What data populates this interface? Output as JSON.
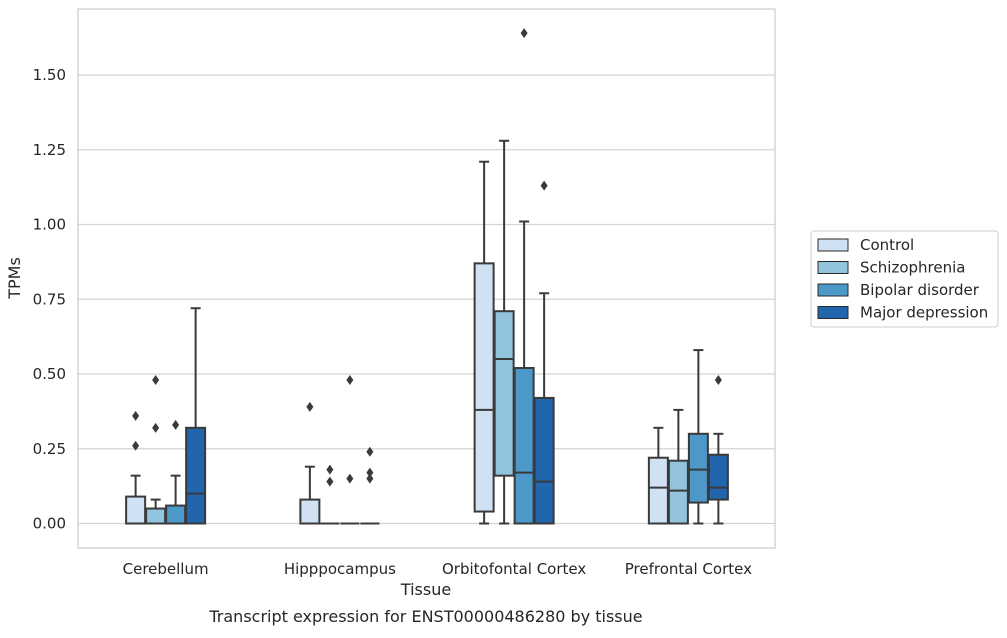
{
  "chart_data": {
    "type": "boxplot",
    "title": "",
    "caption": "Transcript expression for ENST00000486280 by tissue",
    "xlabel": "Tissue",
    "ylabel": "TPMs",
    "ylim": [
      -0.08,
      1.73
    ],
    "yticks": [
      0.0,
      0.25,
      0.5,
      0.75,
      1.0,
      1.25,
      1.5
    ],
    "ytick_labels": [
      "0.00",
      "0.25",
      "0.50",
      "0.75",
      "1.00",
      "1.25",
      "1.50"
    ],
    "grid": "horizontal",
    "legend_position": "right",
    "categories": [
      "Cerebellum",
      "Hipppocampus",
      "Orbitofontal Cortex",
      "Prefrontal Cortex"
    ],
    "series": [
      {
        "name": "Control",
        "color": "#cfe1f2",
        "boxes": [
          {
            "whislo": 0.0,
            "q1": 0.0,
            "med": 0.0,
            "q3": 0.09,
            "whishi": 0.16,
            "fliers": [
              0.26,
              0.36
            ]
          },
          {
            "whislo": 0.0,
            "q1": 0.0,
            "med": 0.0,
            "q3": 0.08,
            "whishi": 0.19,
            "fliers": [
              0.39
            ]
          },
          {
            "whislo": 0.0,
            "q1": 0.04,
            "med": 0.38,
            "q3": 0.87,
            "whishi": 1.21,
            "fliers": []
          },
          {
            "whislo": 0.0,
            "q1": 0.0,
            "med": 0.12,
            "q3": 0.22,
            "whishi": 0.32,
            "fliers": []
          }
        ]
      },
      {
        "name": "Schizophrenia",
        "color": "#93c4de",
        "boxes": [
          {
            "whislo": 0.0,
            "q1": 0.0,
            "med": 0.0,
            "q3": 0.05,
            "whishi": 0.08,
            "fliers": [
              0.32,
              0.48
            ]
          },
          {
            "whislo": 0.0,
            "q1": 0.0,
            "med": 0.0,
            "q3": 0.0,
            "whishi": 0.0,
            "fliers": [
              0.14,
              0.18
            ]
          },
          {
            "whislo": 0.0,
            "q1": 0.16,
            "med": 0.55,
            "q3": 0.71,
            "whishi": 1.28,
            "fliers": []
          },
          {
            "whislo": 0.0,
            "q1": 0.0,
            "med": 0.11,
            "q3": 0.21,
            "whishi": 0.38,
            "fliers": []
          }
        ]
      },
      {
        "name": "Bipolar disorder",
        "color": "#4b98c9",
        "boxes": [
          {
            "whislo": 0.0,
            "q1": 0.0,
            "med": 0.0,
            "q3": 0.06,
            "whishi": 0.16,
            "fliers": [
              0.33
            ]
          },
          {
            "whislo": 0.0,
            "q1": 0.0,
            "med": 0.0,
            "q3": 0.0,
            "whishi": 0.0,
            "fliers": [
              0.15,
              0.48
            ]
          },
          {
            "whislo": 0.0,
            "q1": 0.0,
            "med": 0.17,
            "q3": 0.52,
            "whishi": 1.01,
            "fliers": [
              1.64
            ]
          },
          {
            "whislo": 0.0,
            "q1": 0.07,
            "med": 0.18,
            "q3": 0.3,
            "whishi": 0.58,
            "fliers": []
          }
        ]
      },
      {
        "name": "Major depression",
        "color": "#2166ac",
        "boxes": [
          {
            "whislo": 0.0,
            "q1": 0.0,
            "med": 0.1,
            "q3": 0.32,
            "whishi": 0.72,
            "fliers": []
          },
          {
            "whislo": 0.0,
            "q1": 0.0,
            "med": 0.0,
            "q3": 0.0,
            "whishi": 0.0,
            "fliers": [
              0.15,
              0.17,
              0.24
            ]
          },
          {
            "whislo": 0.0,
            "q1": 0.0,
            "med": 0.14,
            "q3": 0.42,
            "whishi": 0.77,
            "fliers": [
              1.13
            ]
          },
          {
            "whislo": 0.0,
            "q1": 0.08,
            "med": 0.12,
            "q3": 0.23,
            "whishi": 0.3,
            "fliers": [
              0.48
            ]
          }
        ]
      }
    ]
  }
}
